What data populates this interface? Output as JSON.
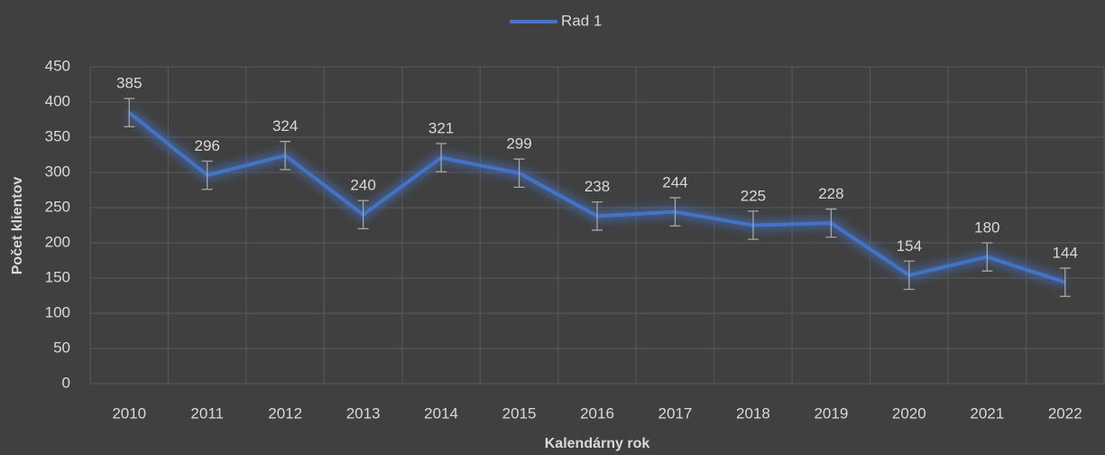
{
  "chart_data": {
    "type": "line",
    "x_label": "Kalendárny rok",
    "y_label": "Počet klientov",
    "categories": [
      "2010",
      "2011",
      "2012",
      "2013",
      "2014",
      "2015",
      "2016",
      "2017",
      "2018",
      "2019",
      "2020",
      "2021",
      "2022"
    ],
    "series": [
      {
        "name": "Rad 1",
        "color": "#4472c4",
        "values": [
          385,
          296,
          324,
          240,
          321,
          299,
          238,
          244,
          225,
          228,
          154,
          180,
          144
        ],
        "errors": [
          20,
          20,
          20,
          20,
          20,
          20,
          20,
          20,
          20,
          20,
          20,
          20,
          20
        ]
      }
    ],
    "ylim": [
      0,
      450
    ],
    "yticks": [
      0,
      50,
      100,
      150,
      200,
      250,
      300,
      350,
      400,
      450
    ],
    "grid": true,
    "legend": "top",
    "data_labels": true
  }
}
